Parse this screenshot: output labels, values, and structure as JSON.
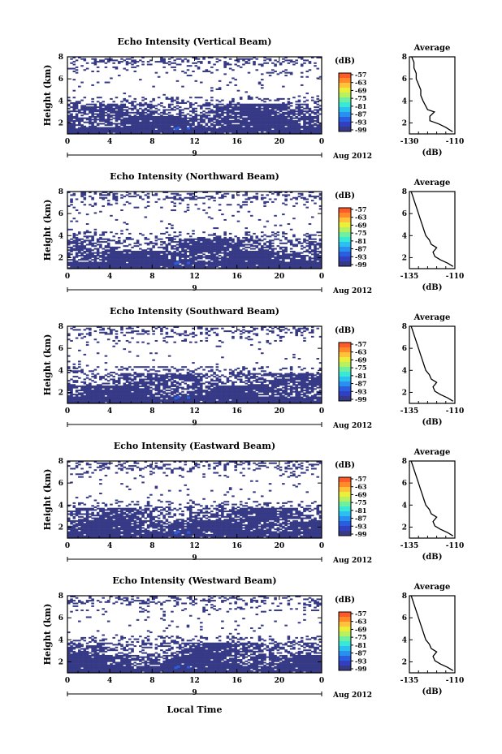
{
  "colorbar": {
    "unit": "(dB)",
    "ticks": [
      "-57",
      "-63",
      "-69",
      "-75",
      "-81",
      "-87",
      "-93",
      "-99"
    ],
    "colors": [
      "#ff5a2a",
      "#ff8a2a",
      "#ffc23a",
      "#eaf03a",
      "#b8f060",
      "#6ff0a0",
      "#3ae8d8",
      "#2ac0f0",
      "#2a90f0",
      "#2a5ee0",
      "#3040c0",
      "#363a86"
    ]
  },
  "fill_color": "#363a86",
  "x_ticks": [
    "0",
    "4",
    "8",
    "12",
    "16",
    "20",
    "0"
  ],
  "date_tick": "9",
  "month_label": "Aug 2012",
  "xlabel": "Local Time",
  "avg_title": "Average",
  "avg_unit": "(dB)",
  "chart_data": [
    {
      "type": "heatmap",
      "title": "Echo Intensity (Vertical Beam)",
      "ylabel": "Height (km)",
      "yticks": [
        "2",
        "4",
        "6",
        "8"
      ],
      "xlim": [
        0,
        24
      ],
      "ylim": [
        1,
        8
      ],
      "avg": {
        "xlim": [
          -130,
          -110
        ],
        "xticks": [
          "-130",
          "-110"
        ],
        "yticks": [
          "2",
          "4",
          "6",
          "8"
        ],
        "profile": [
          [
            -111,
            1.2
          ],
          [
            -114,
            1.6
          ],
          [
            -117,
            1.9
          ],
          [
            -121,
            2.2
          ],
          [
            -121,
            2.6
          ],
          [
            -119,
            3.0
          ],
          [
            -122,
            3.2
          ],
          [
            -123,
            3.6
          ],
          [
            -124,
            4.0
          ],
          [
            -125,
            4.5
          ],
          [
            -125,
            5.0
          ],
          [
            -126,
            5.5
          ],
          [
            -127,
            6.0
          ],
          [
            -127,
            6.5
          ],
          [
            -128,
            7.0
          ],
          [
            -128,
            7.5
          ],
          [
            -129,
            8.0
          ]
        ]
      }
    },
    {
      "type": "heatmap",
      "title": "Echo Intensity (Northward Beam)",
      "ylabel": "Height (km)",
      "yticks": [
        "2",
        "4",
        "6",
        "8"
      ],
      "xlim": [
        0,
        24
      ],
      "ylim": [
        1,
        8
      ],
      "avg": {
        "xlim": [
          -135,
          -110
        ],
        "xticks": [
          "-135",
          "-110"
        ],
        "yticks": [
          "2",
          "4",
          "6",
          "8"
        ],
        "profile": [
          [
            -111,
            1.2
          ],
          [
            -114,
            1.5
          ],
          [
            -118,
            1.8
          ],
          [
            -121,
            2.1
          ],
          [
            -122,
            2.5
          ],
          [
            -120,
            2.9
          ],
          [
            -123,
            3.2
          ],
          [
            -124,
            3.6
          ],
          [
            -126,
            4.0
          ],
          [
            -127,
            4.5
          ],
          [
            -128,
            5.0
          ],
          [
            -129,
            5.5
          ],
          [
            -130,
            6.0
          ],
          [
            -131,
            6.5
          ],
          [
            -132,
            7.0
          ],
          [
            -133,
            7.5
          ],
          [
            -134,
            8.0
          ]
        ]
      }
    },
    {
      "type": "heatmap",
      "title": "Echo Intensity (Southward Beam)",
      "ylabel": "Height (km)",
      "yticks": [
        "2",
        "4",
        "6",
        "8"
      ],
      "xlim": [
        0,
        24
      ],
      "ylim": [
        1,
        8
      ],
      "avg": {
        "xlim": [
          -135,
          -110
        ],
        "xticks": [
          "-135",
          "-110"
        ],
        "yticks": [
          "2",
          "4",
          "6",
          "8"
        ],
        "profile": [
          [
            -111,
            1.2
          ],
          [
            -114,
            1.5
          ],
          [
            -118,
            1.8
          ],
          [
            -121,
            2.1
          ],
          [
            -122,
            2.5
          ],
          [
            -120,
            2.9
          ],
          [
            -123,
            3.2
          ],
          [
            -124,
            3.6
          ],
          [
            -126,
            4.0
          ],
          [
            -127,
            4.5
          ],
          [
            -128,
            5.0
          ],
          [
            -129,
            5.5
          ],
          [
            -130,
            6.0
          ],
          [
            -131,
            6.5
          ],
          [
            -132,
            7.0
          ],
          [
            -133,
            7.5
          ],
          [
            -134,
            8.0
          ]
        ]
      }
    },
    {
      "type": "heatmap",
      "title": "Echo Intensity (Eastward Beam)",
      "ylabel": "Height (km)",
      "yticks": [
        "2",
        "4",
        "6",
        "8"
      ],
      "xlim": [
        0,
        24
      ],
      "ylim": [
        1,
        8
      ],
      "avg": {
        "xlim": [
          -135,
          -110
        ],
        "xticks": [
          "-135",
          "-110"
        ],
        "yticks": [
          "2",
          "4",
          "6",
          "8"
        ],
        "profile": [
          [
            -111,
            1.2
          ],
          [
            -114,
            1.5
          ],
          [
            -118,
            1.8
          ],
          [
            -121,
            2.1
          ],
          [
            -122,
            2.5
          ],
          [
            -120,
            2.9
          ],
          [
            -123,
            3.2
          ],
          [
            -124,
            3.6
          ],
          [
            -126,
            4.0
          ],
          [
            -127,
            4.5
          ],
          [
            -128,
            5.0
          ],
          [
            -129,
            5.5
          ],
          [
            -130,
            6.0
          ],
          [
            -131,
            6.5
          ],
          [
            -132,
            7.0
          ],
          [
            -133,
            7.5
          ],
          [
            -134,
            8.0
          ]
        ]
      }
    },
    {
      "type": "heatmap",
      "title": "Echo Intensity (Westward Beam)",
      "ylabel": "Height (km)",
      "yticks": [
        "2",
        "4",
        "6",
        "8"
      ],
      "xlim": [
        0,
        24
      ],
      "ylim": [
        1,
        8
      ],
      "avg": {
        "xlim": [
          -135,
          -110
        ],
        "xticks": [
          "-135",
          "-110"
        ],
        "yticks": [
          "2",
          "4",
          "6",
          "8"
        ],
        "profile": [
          [
            -111,
            1.2
          ],
          [
            -114,
            1.5
          ],
          [
            -118,
            1.8
          ],
          [
            -121,
            2.1
          ],
          [
            -122,
            2.5
          ],
          [
            -120,
            2.9
          ],
          [
            -123,
            3.2
          ],
          [
            -124,
            3.6
          ],
          [
            -126,
            4.0
          ],
          [
            -127,
            4.5
          ],
          [
            -128,
            5.0
          ],
          [
            -129,
            5.5
          ],
          [
            -130,
            6.0
          ],
          [
            -131,
            6.5
          ],
          [
            -132,
            7.0
          ],
          [
            -133,
            7.5
          ],
          [
            -134,
            8.0
          ]
        ]
      }
    }
  ]
}
